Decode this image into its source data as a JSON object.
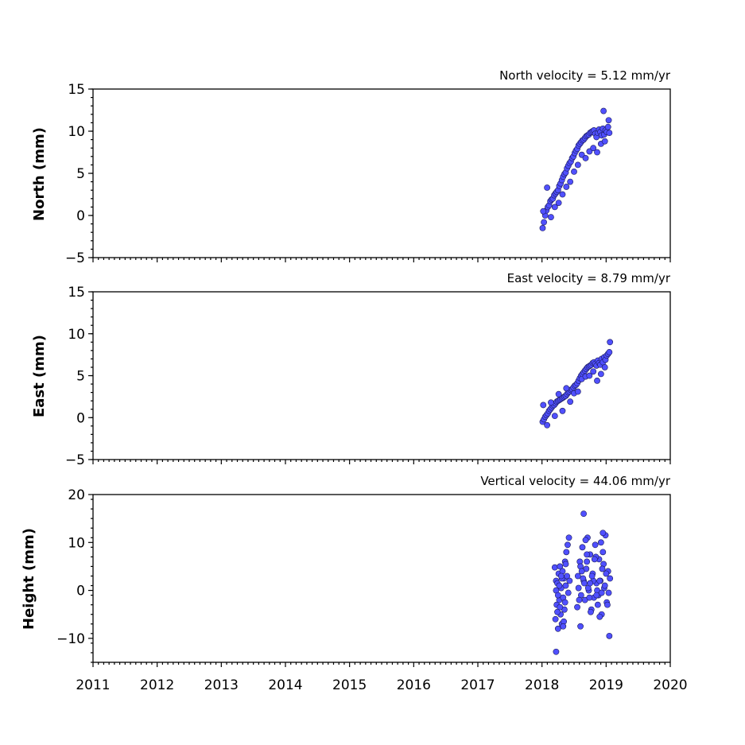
{
  "chart_data": [
    {
      "type": "scatter",
      "title": "North velocity = 5.12 mm/yr",
      "ylabel": "North (mm)",
      "xlim": [
        2011,
        2020
      ],
      "ylim": [
        -5,
        15
      ],
      "yticks": [
        -5,
        0,
        5,
        10,
        15
      ],
      "tick_labels": [
        "−5",
        "0",
        "5",
        "10",
        "15"
      ],
      "marker_color": "#5050ff",
      "series": [
        {
          "x": [
            2018.01,
            2018.03,
            2018.05,
            2018.07,
            2018.09,
            2018.11,
            2018.13,
            2018.15,
            2018.17,
            2018.19,
            2018.21,
            2018.23,
            2018.25,
            2018.27,
            2018.29,
            2018.31,
            2018.33,
            2018.35,
            2018.37,
            2018.39,
            2018.41,
            2018.43,
            2018.45,
            2018.47,
            2018.49,
            2018.51,
            2018.53,
            2018.55,
            2018.57,
            2018.59,
            2018.61,
            2018.63,
            2018.65,
            2018.67,
            2018.69,
            2018.71,
            2018.73,
            2018.75,
            2018.77,
            2018.79,
            2018.81,
            2018.83,
            2018.85,
            2018.87,
            2018.89,
            2018.91,
            2018.93,
            2018.95,
            2018.97,
            2018.99,
            2019.01,
            2019.03,
            2019.05,
            2018.02,
            2018.08,
            2018.14,
            2018.2,
            2018.26,
            2018.32,
            2018.38,
            2018.44,
            2018.5,
            2018.56,
            2018.62,
            2018.68,
            2018.74,
            2018.8,
            2018.86,
            2018.92,
            2018.98,
            2019.04,
            2018.96
          ],
          "y": [
            -1.5,
            -0.8,
            0.0,
            0.6,
            1.0,
            1.2,
            1.7,
            1.9,
            2.0,
            2.4,
            2.6,
            2.8,
            3.0,
            3.5,
            3.8,
            4.2,
            4.6,
            4.9,
            5.1,
            5.6,
            5.9,
            6.2,
            6.4,
            6.8,
            7.0,
            7.4,
            7.7,
            7.9,
            8.3,
            8.5,
            8.7,
            8.9,
            9.0,
            9.2,
            9.4,
            9.5,
            9.6,
            9.8,
            9.9,
            10.0,
            10.1,
            9.7,
            9.3,
            9.8,
            10.2,
            9.9,
            9.5,
            10.3,
            9.6,
            10.1,
            9.9,
            10.5,
            9.8,
            0.5,
            3.3,
            -0.2,
            1.0,
            1.5,
            2.5,
            3.4,
            4.0,
            5.2,
            6.0,
            7.2,
            6.8,
            7.6,
            8.0,
            7.5,
            8.5,
            8.8,
            11.3,
            12.4
          ]
        }
      ]
    },
    {
      "type": "scatter",
      "title": "East velocity = 8.79 mm/yr",
      "ylabel": "East (mm)",
      "xlim": [
        2011,
        2020
      ],
      "ylim": [
        -5,
        15
      ],
      "yticks": [
        -5,
        0,
        5,
        10,
        15
      ],
      "tick_labels": [
        "−5",
        "0",
        "5",
        "10",
        "15"
      ],
      "marker_color": "#5050ff",
      "series": [
        {
          "x": [
            2018.01,
            2018.03,
            2018.05,
            2018.07,
            2018.09,
            2018.11,
            2018.13,
            2018.15,
            2018.17,
            2018.19,
            2018.21,
            2018.23,
            2018.25,
            2018.27,
            2018.29,
            2018.31,
            2018.33,
            2018.35,
            2018.37,
            2018.39,
            2018.41,
            2018.43,
            2018.45,
            2018.47,
            2018.49,
            2018.51,
            2018.53,
            2018.55,
            2018.57,
            2018.59,
            2018.61,
            2018.63,
            2018.65,
            2018.67,
            2018.69,
            2018.71,
            2018.73,
            2018.75,
            2018.77,
            2018.79,
            2018.81,
            2018.83,
            2018.85,
            2018.87,
            2018.89,
            2018.91,
            2018.93,
            2018.95,
            2018.97,
            2018.99,
            2019.01,
            2019.03,
            2019.05,
            2018.02,
            2018.08,
            2018.14,
            2018.2,
            2018.26,
            2018.32,
            2018.38,
            2018.44,
            2018.5,
            2018.56,
            2018.62,
            2018.68,
            2018.74,
            2018.8,
            2018.86,
            2018.92,
            2018.98,
            2019.06
          ],
          "y": [
            -0.5,
            -0.2,
            0.1,
            0.3,
            0.5,
            0.8,
            1.0,
            1.2,
            1.4,
            1.5,
            1.7,
            1.9,
            2.0,
            2.1,
            2.2,
            2.3,
            2.4,
            2.5,
            2.6,
            2.8,
            3.0,
            3.1,
            3.3,
            3.4,
            3.6,
            3.8,
            3.9,
            4.1,
            4.4,
            4.7,
            5.0,
            5.2,
            5.4,
            5.6,
            5.8,
            6.0,
            6.1,
            6.2,
            6.3,
            6.5,
            6.6,
            6.4,
            6.2,
            6.8,
            6.5,
            6.3,
            7.0,
            6.6,
            7.2,
            6.9,
            7.4,
            7.6,
            7.8,
            1.5,
            -0.9,
            1.8,
            0.2,
            2.8,
            0.8,
            3.5,
            1.9,
            2.9,
            3.1,
            4.6,
            4.9,
            5.0,
            5.5,
            4.4,
            5.2,
            6.0,
            9.0
          ]
        }
      ]
    },
    {
      "type": "scatter",
      "title": "Vertical velocity = 44.06 mm/yr",
      "ylabel": "Height (mm)",
      "xlim": [
        2011,
        2020
      ],
      "ylim": [
        -15,
        20
      ],
      "yticks": [
        -10,
        0,
        10,
        20
      ],
      "tick_labels": [
        "−10",
        "0",
        "10",
        "20"
      ],
      "marker_color": "#5050ff",
      "series": [
        {
          "x": [
            2018.2,
            2018.21,
            2018.22,
            2018.23,
            2018.24,
            2018.25,
            2018.26,
            2018.27,
            2018.28,
            2018.29,
            2018.3,
            2018.31,
            2018.32,
            2018.33,
            2018.34,
            2018.35,
            2018.36,
            2018.37,
            2018.38,
            2018.39,
            2018.4,
            2018.41,
            2018.42,
            2018.43,
            2018.22,
            2018.25,
            2018.28,
            2018.31,
            2018.34,
            2018.37,
            2018.24,
            2018.3,
            2018.36,
            2018.27,
            2018.33,
            2018.22,
            2018.55,
            2018.57,
            2018.59,
            2018.61,
            2018.63,
            2018.65,
            2018.67,
            2018.69,
            2018.71,
            2018.73,
            2018.75,
            2018.77,
            2018.79,
            2018.81,
            2018.83,
            2018.85,
            2018.87,
            2018.89,
            2018.91,
            2018.93,
            2018.95,
            2018.97,
            2018.99,
            2019.01,
            2019.03,
            2019.05,
            2018.56,
            2018.6,
            2018.64,
            2018.68,
            2018.72,
            2018.76,
            2018.8,
            2018.84,
            2018.88,
            2018.92,
            2018.96,
            2019.0,
            2019.04,
            2018.58,
            2018.62,
            2018.66,
            2018.7,
            2018.74,
            2018.78,
            2018.82,
            2018.86,
            2018.9,
            2018.94,
            2018.98,
            2019.02,
            2019.06,
            2018.65,
            2018.7,
            2018.85,
            2018.95,
            2018.6,
            2018.75,
            2018.9,
            2018.93
          ],
          "y": [
            4.8,
            -6.0,
            2.0,
            -3.0,
            1.5,
            -8.0,
            3.5,
            -2.0,
            5.0,
            -5.0,
            0.5,
            -7.0,
            4.0,
            -1.5,
            2.5,
            -4.0,
            6.0,
            1.0,
            8.0,
            3.0,
            9.5,
            -0.5,
            11.0,
            2.0,
            0.0,
            -1.0,
            -3.5,
            2.5,
            -6.5,
            5.5,
            -4.5,
            3.0,
            -2.5,
            1.0,
            -7.5,
            -12.8,
            -3.5,
            0.5,
            6.0,
            -1.0,
            9.0,
            2.0,
            -2.0,
            4.5,
            11.0,
            0.0,
            7.5,
            -4.0,
            3.5,
            -1.5,
            9.5,
            1.5,
            -3.0,
            6.5,
            2.0,
            -5.0,
            8.0,
            0.5,
            11.5,
            -2.5,
            4.0,
            -9.5,
            3.0,
            5.0,
            2.5,
            10.5,
            0.5,
            -4.5,
            2.0,
            7.0,
            -1.0,
            10.0,
            5.5,
            3.5,
            -0.5,
            -2.0,
            4.0,
            1.5,
            7.5,
            -1.5,
            3.0,
            6.5,
            0.0,
            -5.5,
            4.5,
            1.0,
            -3.0,
            2.5,
            16.0,
            6.0,
            -1.0,
            12.0,
            -7.5,
            1.5,
            2.0,
            -0.5
          ]
        }
      ]
    }
  ],
  "x_tick_labels": [
    "2011",
    "2012",
    "2013",
    "2014",
    "2015",
    "2016",
    "2017",
    "2018",
    "2019",
    "2020"
  ]
}
